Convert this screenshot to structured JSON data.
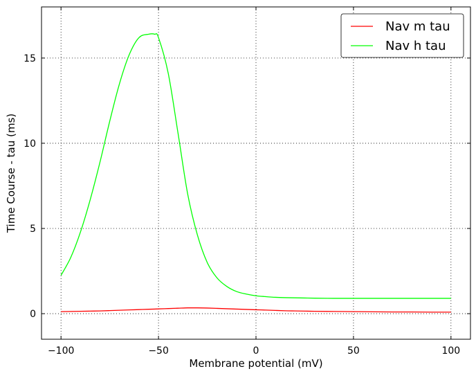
{
  "chart_data": {
    "type": "line",
    "title": "",
    "xlabel": "Membrane potential (mV)",
    "ylabel": "Time Course - tau (ms)",
    "xlim": [
      -110,
      110
    ],
    "ylim": [
      -1.5,
      18
    ],
    "xticks": [
      -100,
      -50,
      0,
      50,
      100
    ],
    "yticks": [
      0,
      5,
      10,
      15
    ],
    "grid": true,
    "legend_position": "top-right",
    "x": [
      -100,
      -95,
      -90,
      -85,
      -80,
      -75,
      -70,
      -65,
      -60,
      -55,
      -52,
      -50,
      -45,
      -40,
      -35,
      -30,
      -25,
      -20,
      -15,
      -10,
      -5,
      0,
      5,
      10,
      15,
      20,
      25,
      30,
      40,
      50,
      60,
      70,
      80,
      90,
      100
    ],
    "series": [
      {
        "name": "Nav m tau",
        "color": "#ff0000",
        "values": [
          0.12,
          0.13,
          0.14,
          0.15,
          0.16,
          0.18,
          0.2,
          0.22,
          0.24,
          0.26,
          0.27,
          0.28,
          0.3,
          0.32,
          0.34,
          0.34,
          0.33,
          0.31,
          0.29,
          0.27,
          0.25,
          0.23,
          0.21,
          0.19,
          0.17,
          0.16,
          0.15,
          0.14,
          0.13,
          0.12,
          0.11,
          0.1,
          0.1,
          0.09,
          0.09
        ]
      },
      {
        "name": "Nav h tau",
        "color": "#00ff00",
        "values": [
          2.25,
          3.3,
          4.8,
          6.7,
          8.9,
          11.3,
          13.5,
          15.2,
          16.2,
          16.4,
          16.4,
          16.2,
          14.1,
          10.6,
          7.0,
          4.6,
          3.0,
          2.1,
          1.6,
          1.3,
          1.15,
          1.05,
          1.0,
          0.96,
          0.94,
          0.93,
          0.92,
          0.91,
          0.9,
          0.9,
          0.9,
          0.9,
          0.9,
          0.9,
          0.9
        ]
      }
    ]
  }
}
